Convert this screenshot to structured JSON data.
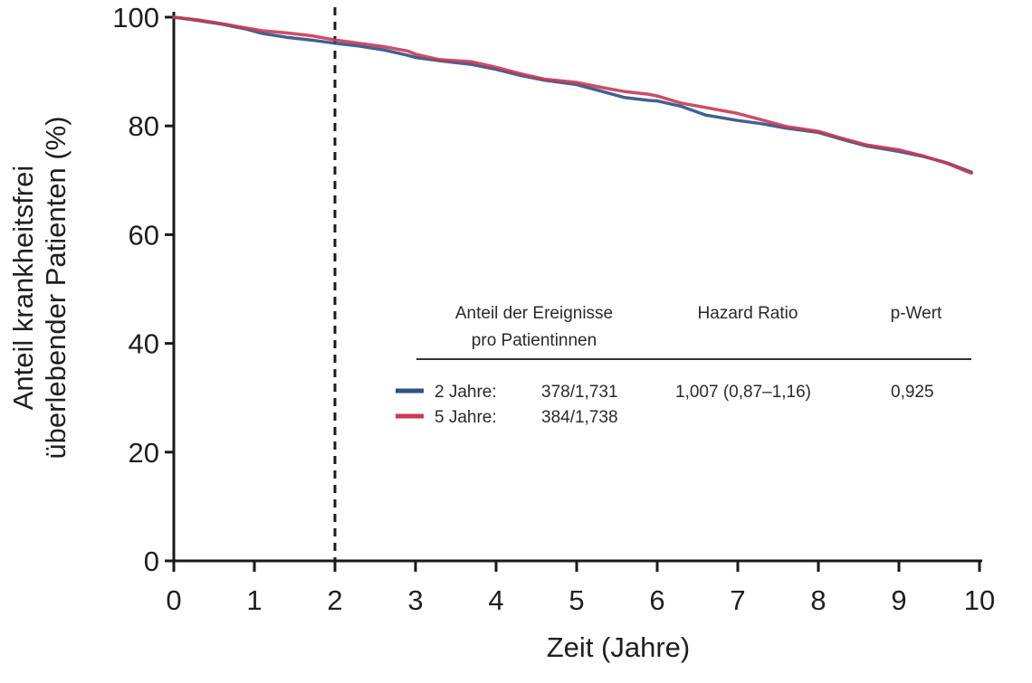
{
  "chart_data": {
    "type": "line",
    "xlabel": "Zeit (Jahre)",
    "ylabel_line1": "Anteil krankheitsfrei",
    "ylabel_line2": "überlebender Patienten (%)",
    "xlim": [
      0,
      10
    ],
    "ylim": [
      0,
      100
    ],
    "x_ticks": [
      "0",
      "1",
      "2",
      "3",
      "4",
      "5",
      "6",
      "7",
      "8",
      "9",
      "10"
    ],
    "y_ticks": [
      "0",
      "20",
      "40",
      "60",
      "80",
      "100"
    ],
    "grid": false,
    "reference_line": {
      "x": 2,
      "style": "dashed"
    },
    "series": [
      {
        "name": "2 Jahre:",
        "color": "#2f4f86",
        "x": [
          0,
          0.3,
          0.6,
          0.9,
          1.1,
          1.4,
          1.7,
          2.0,
          2.3,
          2.6,
          2.9,
          3.0,
          3.3,
          3.7,
          4.0,
          4.3,
          4.6,
          5.0,
          5.3,
          5.6,
          5.9,
          6.0,
          6.3,
          6.6,
          7.0,
          7.3,
          7.6,
          8.0,
          8.3,
          8.6,
          9.0,
          9.3,
          9.6,
          9.9
        ],
        "values": [
          100,
          99.4,
          98.7,
          97.8,
          97.0,
          96.3,
          95.8,
          95.2,
          94.7,
          94.0,
          93.0,
          92.6,
          92.0,
          91.3,
          90.4,
          89.3,
          88.4,
          87.6,
          86.4,
          85.2,
          84.7,
          84.6,
          83.6,
          82.0,
          81.0,
          80.4,
          79.6,
          78.8,
          77.5,
          76.3,
          75.3,
          74.4,
          73.2,
          71.5
        ]
      },
      {
        "name": "5 Jahre:",
        "color": "#c83a52",
        "x": [
          0,
          0.3,
          0.6,
          0.9,
          1.1,
          1.4,
          1.7,
          2.0,
          2.3,
          2.6,
          2.9,
          3.0,
          3.3,
          3.7,
          4.0,
          4.3,
          4.6,
          5.0,
          5.3,
          5.6,
          5.9,
          6.0,
          6.3,
          6.6,
          7.0,
          7.3,
          7.6,
          8.0,
          8.3,
          8.6,
          9.0,
          9.3,
          9.6,
          9.9
        ],
        "values": [
          100,
          99.5,
          98.8,
          98.0,
          97.5,
          97.1,
          96.6,
          95.8,
          95.2,
          94.6,
          93.8,
          93.2,
          92.2,
          91.8,
          90.8,
          89.6,
          88.6,
          88.0,
          87.1,
          86.3,
          85.8,
          85.5,
          84.2,
          83.4,
          82.3,
          81.1,
          79.9,
          79.0,
          77.7,
          76.5,
          75.6,
          74.5,
          73.1,
          71.3
        ]
      }
    ],
    "legend_table": {
      "headers": {
        "events_line1": "Anteil der Ereignisse",
        "events_line2": "pro Patientinnen",
        "hazard": "Hazard Ratio",
        "p": "p-Wert"
      },
      "rows": [
        {
          "label": "2 Jahre:",
          "events": "378/1,731",
          "hazard": "1,007 (0,87–1,16)",
          "p": "0,925"
        },
        {
          "label": "5 Jahre:",
          "events": "384/1,738",
          "hazard": "",
          "p": ""
        }
      ]
    }
  }
}
